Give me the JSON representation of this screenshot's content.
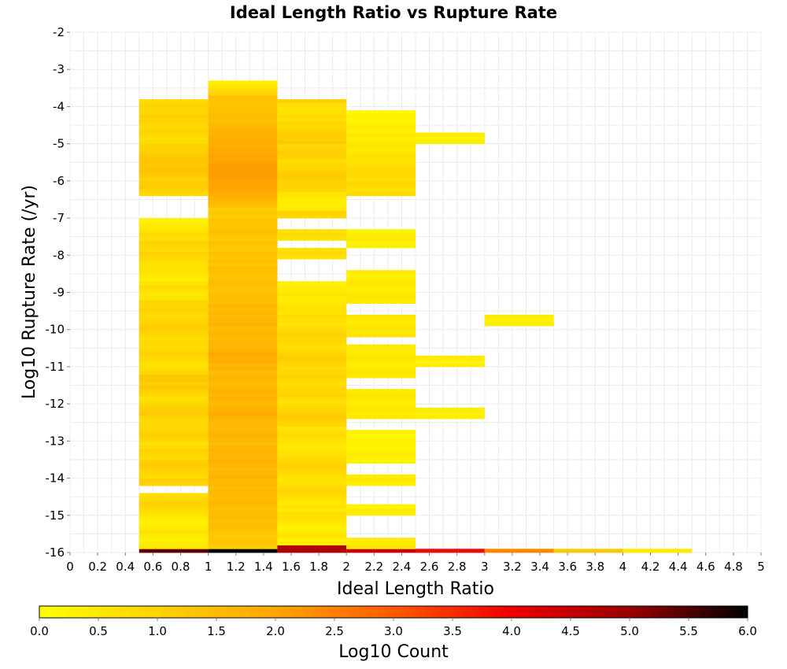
{
  "chart_data": {
    "type": "heatmap",
    "title": "Ideal Length Ratio vs Rupture Rate",
    "xlabel": "Ideal Length Ratio",
    "ylabel": "Log10 Rupture Rate (/yr)",
    "xlim": [
      0,
      5
    ],
    "ylim": [
      -16,
      -2
    ],
    "x_ticks": [
      "0",
      "0.2",
      "0.4",
      "0.6",
      "0.8",
      "1",
      "1.2",
      "1.4",
      "1.6",
      "1.8",
      "2",
      "2.2",
      "2.4",
      "2.6",
      "2.8",
      "3",
      "3.2",
      "3.4",
      "3.6",
      "3.8",
      "4",
      "4.2",
      "4.4",
      "4.6",
      "4.8",
      "5"
    ],
    "y_ticks": [
      "-2",
      "-3",
      "-4",
      "-5",
      "-6",
      "-7",
      "-8",
      "-9",
      "-10",
      "-11",
      "-12",
      "-13",
      "-14",
      "-15",
      "-16"
    ],
    "grid": true,
    "x_bin_width": 0.5,
    "y_bin_height": 0.1,
    "colorbar": {
      "label": "Log10 Count",
      "min": 0,
      "max": 6,
      "ticks": [
        "0.0",
        "0.5",
        "1.0",
        "1.5",
        "2.0",
        "2.5",
        "3.0",
        "3.5",
        "4.0",
        "4.5",
        "5.0",
        "5.5",
        "6.0"
      ],
      "colors": [
        "#ffff00",
        "#ffd200",
        "#ffa500",
        "#ff5a00",
        "#ee0000",
        "#990000",
        "#000000"
      ]
    },
    "cells": [
      {
        "x": 0.5,
        "y0": -6.4,
        "y1": -3.8,
        "values": [
          0.9,
          1.0,
          1.2,
          1.1,
          1.0,
          1.2,
          1.3,
          1.3,
          1.2,
          1.3,
          1.3,
          1.1,
          1.0,
          1.0,
          0.8,
          0.7,
          0.9,
          1.0,
          0.8,
          0.9,
          1.0,
          1.1,
          0.9,
          0.9,
          1.0,
          0.8
        ]
      },
      {
        "x": 0.5,
        "y0": -16.0,
        "y1": -15.9,
        "values": [
          5.4
        ]
      },
      {
        "x": 0.5,
        "y0": -15.9,
        "y1": -14.4,
        "values": [
          0.5,
          0.4,
          0.3,
          0.5,
          0.6,
          0.5,
          0.4,
          0.3,
          0.5,
          0.6,
          0.8,
          0.9,
          1.0,
          0.8,
          0.7
        ]
      },
      {
        "x": 0.5,
        "y0": -14.2,
        "y1": -7.0,
        "values": [
          1.0,
          1.1,
          0.8,
          0.9,
          1.0,
          1.2,
          1.0,
          0.8,
          0.9,
          1.0,
          0.8,
          0.7,
          1.0,
          1.1,
          1.0,
          0.8,
          0.9,
          0.8,
          1.0,
          1.2,
          1.1,
          1.0,
          0.8,
          0.7,
          0.9,
          1.0,
          1.2,
          1.1,
          1.3,
          1.2,
          0.9,
          0.8,
          0.7,
          0.8,
          0.9,
          1.0,
          0.9,
          0.8,
          0.8,
          0.7,
          0.9,
          1.0,
          1.1,
          1.0,
          0.9,
          0.8,
          0.9,
          1.0,
          0.9,
          0.9,
          0.6,
          0.5,
          0.7,
          0.8,
          0.6,
          0.4,
          0.5,
          0.6,
          0.7,
          0.6,
          0.8,
          0.9,
          1.0,
          0.8,
          0.9,
          1.0,
          0.7,
          0.8,
          0.6,
          0.5,
          0.4,
          0.3
        ]
      },
      {
        "x": 1.0,
        "y0": -16.0,
        "y1": -15.9,
        "values": [
          6.0
        ]
      },
      {
        "x": 1.0,
        "y0": -15.9,
        "y1": -6.7,
        "values": [
          1.1,
          1.2,
          1.3,
          1.2,
          1.3,
          1.4,
          1.5,
          1.4,
          1.5,
          1.5,
          1.4,
          1.5,
          1.6,
          1.5,
          1.6,
          1.6,
          1.5,
          1.6,
          1.6,
          1.7,
          1.6,
          1.5,
          1.6,
          1.7,
          1.6,
          1.6,
          1.7,
          1.6,
          1.5,
          1.6,
          1.7,
          1.6,
          1.5,
          1.5,
          1.6,
          1.7,
          1.8,
          1.7,
          1.6,
          1.6,
          1.7,
          1.6,
          1.7,
          1.6,
          1.5,
          1.6,
          1.6,
          1.5,
          1.7,
          1.6,
          1.8,
          1.8,
          1.9,
          1.7,
          1.6,
          1.6,
          1.5,
          1.6,
          1.6,
          1.5,
          1.7,
          1.6,
          1.5,
          1.6,
          1.5,
          1.6,
          1.4,
          1.5,
          1.4,
          1.3,
          1.4,
          1.5,
          1.4,
          1.3,
          1.4,
          1.5,
          1.3,
          1.4,
          1.3,
          1.4,
          1.2,
          1.3,
          1.4,
          1.2,
          1.3,
          1.4,
          1.3,
          1.2,
          1.3,
          1.1,
          1.2,
          1.1
        ]
      },
      {
        "x": 1.0,
        "y0": -6.7,
        "y1": -3.3,
        "values": [
          1.5,
          1.6,
          1.7,
          1.8,
          1.9,
          2.0,
          2.0,
          2.1,
          2.1,
          2.1,
          2.1,
          2.1,
          2.0,
          2.0,
          1.9,
          1.9,
          1.8,
          1.8,
          1.8,
          1.7,
          1.7,
          1.6,
          1.5,
          1.4,
          1.5,
          1.4,
          1.4,
          1.3,
          1.3,
          1.4,
          1.0,
          0.8,
          0.5,
          0.4
        ]
      },
      {
        "x": 1.5,
        "y0": -16.0,
        "y1": -15.8,
        "values": [
          4.8,
          4.7
        ]
      },
      {
        "x": 1.5,
        "y0": -15.8,
        "y1": -8.7,
        "values": [
          0.4,
          0.3,
          0.6,
          0.5,
          0.3,
          0.4,
          0.6,
          0.7,
          0.7,
          0.5,
          0.6,
          0.5,
          0.7,
          0.8,
          0.9,
          0.8,
          0.7,
          0.6,
          0.7,
          0.8,
          0.9,
          1.0,
          0.9,
          0.8,
          0.7,
          0.6,
          0.5,
          0.6,
          0.7,
          0.8,
          0.7,
          0.6,
          0.9,
          1.0,
          1.2,
          1.1,
          0.9,
          0.8,
          0.7,
          0.8,
          1.0,
          0.9,
          0.8,
          0.7,
          0.9,
          1.0,
          0.9,
          0.8,
          0.9,
          1.0,
          1.1,
          1.0,
          0.8,
          0.7,
          0.8,
          0.9,
          1.0,
          0.9,
          0.8,
          0.6,
          0.7,
          0.8,
          0.6,
          0.7,
          0.6,
          0.5,
          0.4,
          0.6,
          0.5,
          0.4,
          0.3
        ]
      },
      {
        "x": 1.5,
        "y0": -8.1,
        "y1": -7.8,
        "values": [
          0.7,
          0.8,
          0.7
        ]
      },
      {
        "x": 1.5,
        "y0": -7.6,
        "y1": -7.3,
        "values": [
          0.7,
          0.8,
          0.7
        ]
      },
      {
        "x": 1.5,
        "y0": -7.0,
        "y1": -3.8,
        "values": [
          0.9,
          1.0,
          0.5,
          0.4,
          0.4,
          0.5,
          0.6,
          0.9,
          1.0,
          1.0,
          1.1,
          1.2,
          1.0,
          0.9,
          0.9,
          0.8,
          1.0,
          1.1,
          1.0,
          0.9,
          1.2,
          1.1,
          1.1,
          1.0,
          0.8,
          0.9,
          0.7,
          0.8,
          0.7,
          0.6,
          0.7,
          1.0
        ]
      },
      {
        "x": 2.0,
        "y0": -16.0,
        "y1": -15.9,
        "values": [
          4.5
        ]
      },
      {
        "x": 2.0,
        "y0": -15.9,
        "y1": -15.6,
        "values": [
          0.5,
          0.4,
          0.4
        ]
      },
      {
        "x": 2.0,
        "y0": -15.0,
        "y1": -14.7,
        "values": [
          0.4,
          0.4,
          0.3
        ]
      },
      {
        "x": 2.0,
        "y0": -14.2,
        "y1": -13.9,
        "values": [
          0.4,
          0.5,
          0.4
        ]
      },
      {
        "x": 2.0,
        "y0": -13.6,
        "y1": -12.7,
        "values": [
          0.3,
          0.3,
          0.4,
          0.3,
          0.2,
          0.3,
          0.3,
          0.2,
          0.3
        ]
      },
      {
        "x": 2.0,
        "y0": -12.4,
        "y1": -11.6,
        "values": [
          0.5,
          0.4,
          0.6,
          0.5,
          0.4,
          0.5,
          0.6,
          0.5
        ]
      },
      {
        "x": 2.0,
        "y0": -11.3,
        "y1": -10.4,
        "values": [
          0.5,
          0.6,
          0.5,
          0.4,
          0.5,
          0.6,
          0.5,
          0.4,
          0.5
        ]
      },
      {
        "x": 2.0,
        "y0": -10.2,
        "y1": -9.6,
        "values": [
          0.6,
          0.5,
          0.6,
          0.5,
          0.4,
          0.6
        ]
      },
      {
        "x": 2.0,
        "y0": -9.3,
        "y1": -8.4,
        "values": [
          0.5,
          0.6,
          0.5,
          0.4,
          0.5,
          0.6,
          0.5,
          0.3,
          0.4
        ]
      },
      {
        "x": 2.0,
        "y0": -7.8,
        "y1": -7.3,
        "values": [
          0.4,
          0.3,
          0.5,
          0.4,
          0.3
        ]
      },
      {
        "x": 2.0,
        "y0": -6.4,
        "y1": -4.1,
        "values": [
          0.8,
          0.7,
          0.8,
          0.9,
          0.7,
          0.8,
          0.8,
          0.8,
          0.7,
          0.6,
          0.7,
          0.6,
          0.5,
          0.6,
          0.5,
          0.4,
          0.5,
          0.3,
          0.4,
          0.3,
          0.2,
          0.3,
          0.2
        ]
      },
      {
        "x": 2.5,
        "y0": -16.0,
        "y1": -15.9,
        "values": [
          3.9
        ]
      },
      {
        "x": 2.5,
        "y0": -12.4,
        "y1": -12.1,
        "values": [
          0.4,
          0.3,
          0.4
        ]
      },
      {
        "x": 2.5,
        "y0": -11.0,
        "y1": -10.7,
        "values": [
          0.4,
          0.3,
          0.4
        ]
      },
      {
        "x": 2.5,
        "y0": -5.0,
        "y1": -4.7,
        "values": [
          0.4,
          0.3,
          0.4
        ]
      },
      {
        "x": 3.0,
        "y0": -16.0,
        "y1": -15.9,
        "values": [
          2.4
        ]
      },
      {
        "x": 3.0,
        "y0": -9.9,
        "y1": -9.6,
        "values": [
          0.4,
          0.3,
          0.4
        ]
      },
      {
        "x": 3.5,
        "y0": -16.0,
        "y1": -15.9,
        "values": [
          1.2
        ]
      },
      {
        "x": 4.0,
        "y0": -16.0,
        "y1": -15.9,
        "values": [
          0.5
        ]
      }
    ]
  }
}
